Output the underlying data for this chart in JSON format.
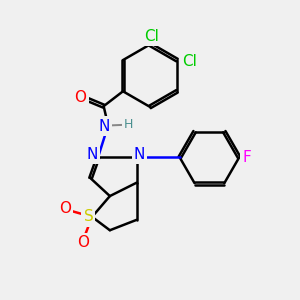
{
  "background_color": "#f0f0f0",
  "atom_colors": {
    "C": "#000000",
    "H": "#4a9090",
    "N": "#0000ff",
    "O": "#ff0000",
    "S": "#cccc00",
    "F": "#ff00ff",
    "Cl": "#00cc00"
  },
  "bond_color": "#000000",
  "bond_width": 1.8,
  "font_size_atoms": 11,
  "font_size_small": 9
}
